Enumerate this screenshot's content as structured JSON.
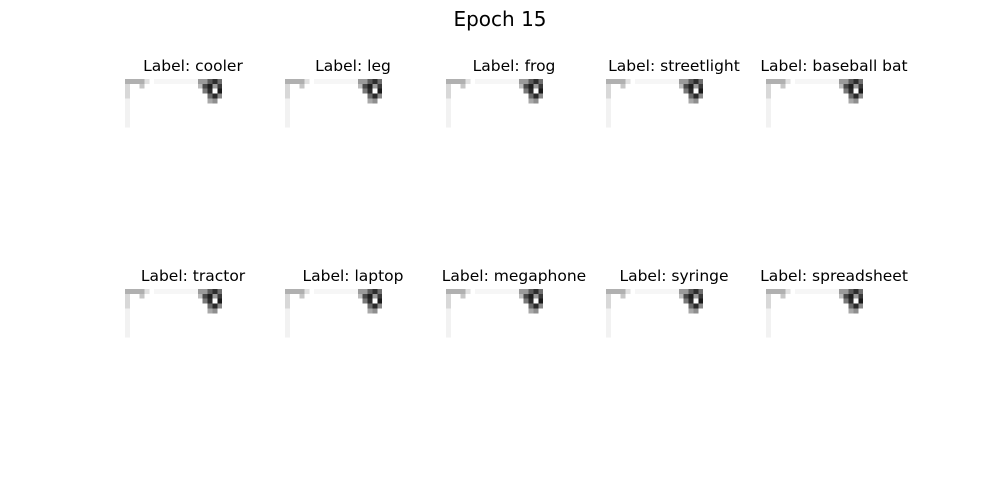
{
  "figure": {
    "title": "Epoch 15"
  },
  "panels": [
    {
      "label": "Label: cooler"
    },
    {
      "label": "Label: leg"
    },
    {
      "label": "Label: frog"
    },
    {
      "label": "Label: streetlight"
    },
    {
      "label": "Label: baseball bat"
    },
    {
      "label": "Label: tractor"
    },
    {
      "label": "Label: laptop"
    },
    {
      "label": "Label: megaphone"
    },
    {
      "label": "Label: syringe"
    },
    {
      "label": "Label: spreadsheet"
    }
  ]
}
